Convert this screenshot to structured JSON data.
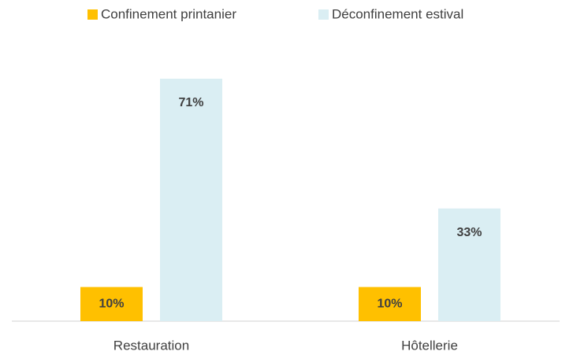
{
  "chart_data": {
    "type": "bar",
    "categories": [
      "Restauration",
      "Hôtellerie"
    ],
    "series": [
      {
        "name": "Confinement printanier",
        "color": "#FFC000",
        "values": [
          10,
          10
        ],
        "value_labels": [
          "10%",
          "10%"
        ]
      },
      {
        "name": "Déconfinement estival",
        "color": "#DAEEF3",
        "values": [
          71,
          33
        ],
        "value_labels": [
          "71%",
          "33%"
        ]
      }
    ]
  }
}
